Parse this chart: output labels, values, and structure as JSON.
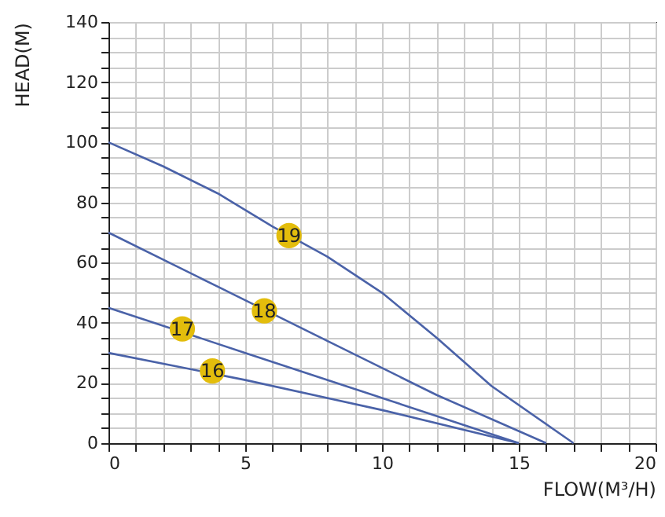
{
  "chart_data": {
    "type": "line",
    "xlabel": "FLOW(M³/H)",
    "ylabel": "HEAD(M)",
    "series": [
      {
        "color": "#4a62a8",
        "x": [
          0,
          5,
          10,
          15
        ],
        "values": [
          30,
          21,
          11,
          0
        ]
      },
      {
        "color": "#4a62a8",
        "x": [
          0,
          5,
          10,
          15
        ],
        "values": [
          45,
          30,
          15,
          0
        ]
      },
      {
        "color": "#4a62a8",
        "x": [
          0,
          4,
          8,
          12,
          16
        ],
        "values": [
          70,
          52,
          34,
          16,
          0
        ]
      },
      {
        "color": "#4a62a8",
        "x": [
          0,
          2,
          4,
          6,
          8,
          10,
          12,
          14,
          17
        ],
        "values": [
          100,
          92,
          83,
          72,
          62,
          50,
          35,
          19,
          0
        ]
      }
    ],
    "annotations": [
      {
        "text": "16",
        "x": 3.8,
        "y": 24
      },
      {
        "text": "17",
        "x": 2.7,
        "y": 38
      },
      {
        "text": "18",
        "x": 5.7,
        "y": 44
      },
      {
        "text": "19",
        "x": 6.6,
        "y": 69
      }
    ],
    "xlim": [
      0,
      20
    ],
    "ylim": [
      0,
      140
    ],
    "xticks": [
      0,
      {
        "value": 1,
        "label": null
      },
      {
        "value": 2,
        "label": null
      },
      {
        "value": 3,
        "label": null
      },
      {
        "value": 4,
        "label": null
      },
      5,
      {
        "value": 6,
        "label": null
      },
      {
        "value": 7,
        "label": null
      },
      {
        "value": 8,
        "label": null
      },
      {
        "value": 9,
        "label": null
      },
      10,
      {
        "value": 11,
        "label": null
      },
      {
        "value": 12,
        "label": null
      },
      {
        "value": 13,
        "label": null
      },
      {
        "value": 14,
        "label": null
      },
      15,
      {
        "value": 16,
        "label": null
      },
      {
        "value": 17,
        "label": null
      },
      {
        "value": 18,
        "label": null
      },
      {
        "value": 19,
        "label": null
      },
      20
    ],
    "yticks": [
      0,
      {
        "value": 5,
        "label": null
      },
      {
        "value": 10,
        "label": null
      },
      {
        "value": 15,
        "label": null
      },
      20,
      {
        "value": 25,
        "label": null
      },
      {
        "value": 30,
        "label": null
      },
      {
        "value": 35,
        "label": null
      },
      40,
      {
        "value": 45,
        "label": null
      },
      {
        "value": 50,
        "label": null
      },
      {
        "value": 55,
        "label": null
      },
      60,
      {
        "value": 65,
        "label": null
      },
      {
        "value": 70,
        "label": null
      },
      {
        "value": 75,
        "label": null
      },
      80,
      {
        "value": 85,
        "label": null
      },
      {
        "value": 90,
        "label": null
      },
      {
        "value": 95,
        "label": null
      },
      100,
      {
        "value": 105,
        "label": null
      },
      {
        "value": 110,
        "label": null
      },
      {
        "value": 115,
        "label": null
      },
      120,
      {
        "value": 125,
        "label": null
      },
      {
        "value": 130,
        "label": null
      },
      {
        "value": 135,
        "label": null
      },
      140
    ],
    "grid": true,
    "marker": "none",
    "line_style": "solid"
  }
}
